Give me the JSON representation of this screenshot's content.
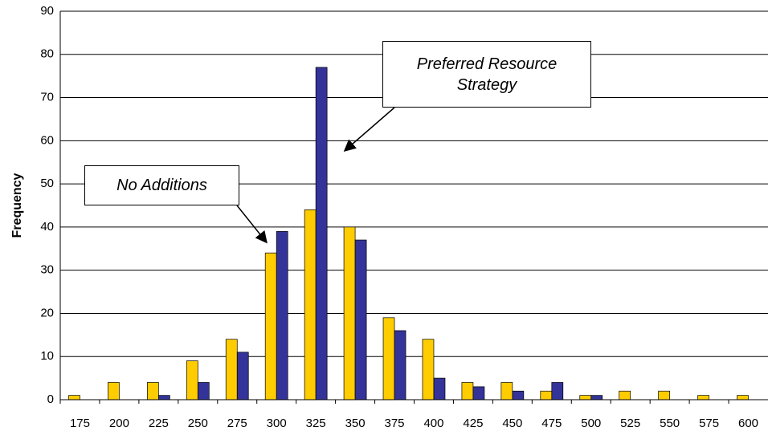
{
  "chart_data": {
    "type": "bar",
    "y_label": "Frequency",
    "categories": [
      175,
      200,
      225,
      250,
      275,
      300,
      325,
      350,
      375,
      400,
      425,
      450,
      475,
      500,
      525,
      550,
      575,
      600
    ],
    "series": [
      {
        "color": "#ffcc00",
        "values": [
          1,
          4,
          4,
          9,
          14,
          34,
          44,
          40,
          19,
          14,
          4,
          4,
          2,
          1,
          2,
          2,
          1,
          1
        ]
      },
      {
        "color": "#333399",
        "values": [
          0,
          0,
          1,
          4,
          11,
          39,
          77,
          37,
          16,
          5,
          3,
          2,
          4,
          1,
          0,
          0,
          0,
          0
        ]
      }
    ],
    "ylim": [
      0,
      90
    ],
    "yticks": [
      0,
      10,
      20,
      30,
      40,
      50,
      60,
      70,
      80,
      90
    ],
    "grid": true,
    "annotations": [
      "No Additions",
      "Preferred Resource Strategy"
    ]
  }
}
